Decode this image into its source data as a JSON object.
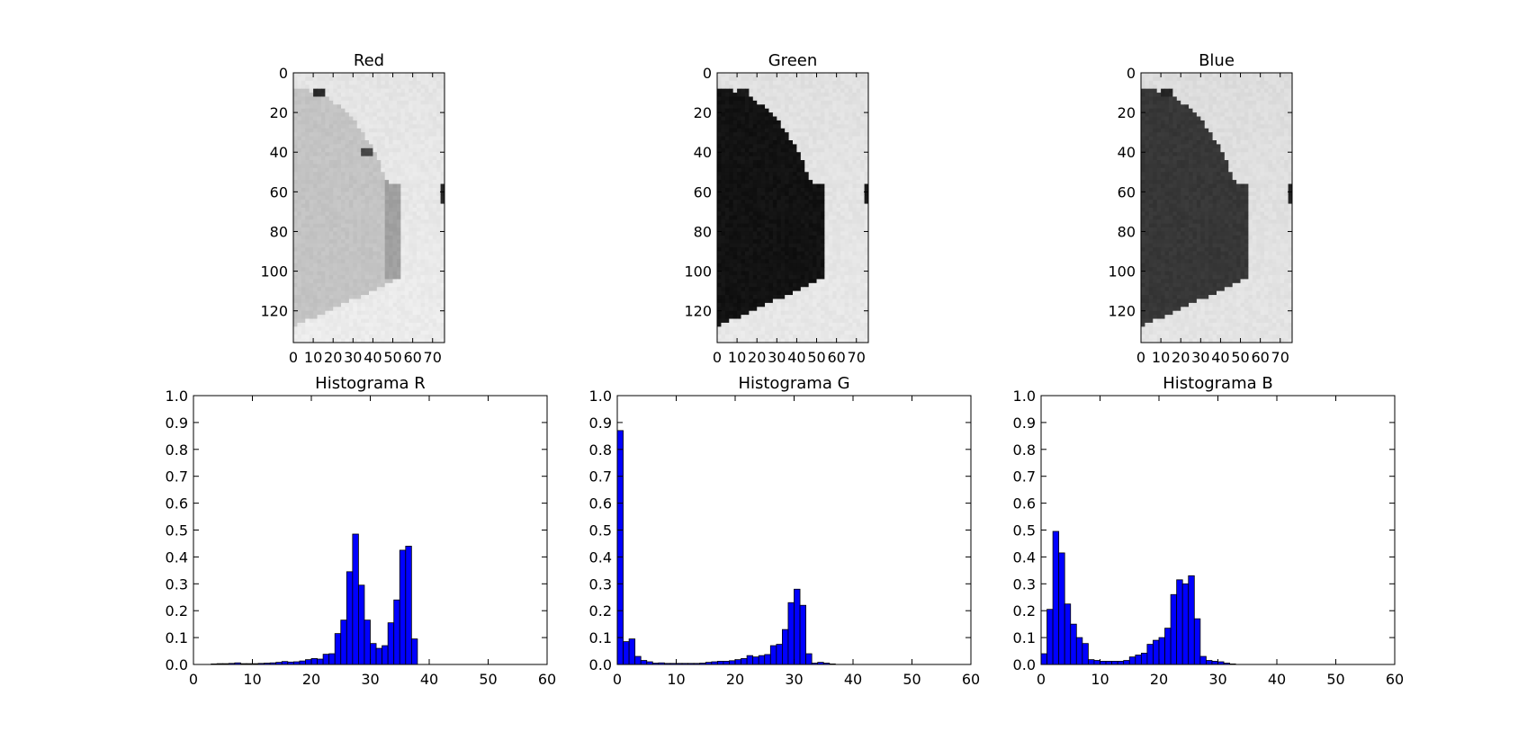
{
  "chart_data": [
    {
      "type": "image",
      "title": "Red",
      "channel": "red",
      "xlim": [
        0,
        76
      ],
      "ylim": [
        0,
        136
      ],
      "xticks": [
        0,
        10,
        20,
        30,
        40,
        50,
        60,
        70
      ],
      "yticks": [
        0,
        20,
        40,
        60,
        80,
        100,
        120
      ],
      "y_inverted": true,
      "colormap": "gray"
    },
    {
      "type": "image",
      "title": "Green",
      "channel": "green",
      "xlim": [
        0,
        76
      ],
      "ylim": [
        0,
        136
      ],
      "xticks": [
        0,
        10,
        20,
        30,
        40,
        50,
        60,
        70
      ],
      "yticks": [
        0,
        20,
        40,
        60,
        80,
        100,
        120
      ],
      "y_inverted": true,
      "colormap": "gray"
    },
    {
      "type": "image",
      "title": "Blue",
      "channel": "blue",
      "xlim": [
        0,
        76
      ],
      "ylim": [
        0,
        136
      ],
      "xticks": [
        0,
        10,
        20,
        30,
        40,
        50,
        60,
        70
      ],
      "yticks": [
        0,
        20,
        40,
        60,
        80,
        100,
        120
      ],
      "y_inverted": true,
      "colormap": "gray"
    },
    {
      "type": "bar",
      "title": "Histograma R",
      "xlim": [
        0,
        60
      ],
      "ylim": [
        0,
        1.0
      ],
      "xticks": [
        0,
        10,
        20,
        30,
        40,
        50,
        60
      ],
      "yticks": [
        0.0,
        0.1,
        0.2,
        0.3,
        0.4,
        0.5,
        0.6,
        0.7,
        0.8,
        0.9,
        1.0
      ],
      "bar_color": "#0000ff",
      "values": [
        0.0,
        0.0,
        0.0,
        0.002,
        0.003,
        0.003,
        0.004,
        0.006,
        0.003,
        0.003,
        0.003,
        0.004,
        0.005,
        0.006,
        0.008,
        0.011,
        0.009,
        0.01,
        0.013,
        0.018,
        0.022,
        0.02,
        0.038,
        0.04,
        0.115,
        0.165,
        0.345,
        0.485,
        0.295,
        0.165,
        0.078,
        0.06,
        0.07,
        0.155,
        0.24,
        0.425,
        0.44,
        0.095,
        0,
        0,
        0,
        0,
        0,
        0,
        0,
        0,
        0,
        0,
        0,
        0,
        0,
        0,
        0,
        0,
        0,
        0,
        0,
        0,
        0,
        0
      ]
    },
    {
      "type": "bar",
      "title": "Histograma G",
      "xlim": [
        0,
        60
      ],
      "ylim": [
        0,
        1.0
      ],
      "xticks": [
        0,
        10,
        20,
        30,
        40,
        50,
        60
      ],
      "yticks": [
        0.0,
        0.1,
        0.2,
        0.3,
        0.4,
        0.5,
        0.6,
        0.7,
        0.8,
        0.9,
        1.0
      ],
      "bar_color": "#0000ff",
      "values": [
        0.87,
        0.085,
        0.095,
        0.03,
        0.015,
        0.01,
        0.005,
        0.006,
        0.004,
        0.004,
        0.004,
        0.004,
        0.004,
        0.004,
        0.005,
        0.008,
        0.01,
        0.012,
        0.012,
        0.014,
        0.018,
        0.022,
        0.033,
        0.028,
        0.033,
        0.037,
        0.07,
        0.075,
        0.13,
        0.23,
        0.28,
        0.22,
        0.04,
        0.005,
        0.008,
        0.005,
        0.002,
        0,
        0,
        0,
        0,
        0,
        0,
        0,
        0,
        0,
        0,
        0,
        0,
        0,
        0,
        0,
        0,
        0,
        0,
        0,
        0,
        0,
        0,
        0
      ]
    },
    {
      "type": "bar",
      "title": "Histograma B",
      "xlim": [
        0,
        60
      ],
      "ylim": [
        0,
        1.0
      ],
      "xticks": [
        0,
        10,
        20,
        30,
        40,
        50,
        60
      ],
      "yticks": [
        0.0,
        0.1,
        0.2,
        0.3,
        0.4,
        0.5,
        0.6,
        0.7,
        0.8,
        0.9,
        1.0
      ],
      "bar_color": "#0000ff",
      "values": [
        0.04,
        0.205,
        0.495,
        0.415,
        0.225,
        0.15,
        0.1,
        0.078,
        0.018,
        0.015,
        0.012,
        0.012,
        0.012,
        0.012,
        0.015,
        0.028,
        0.035,
        0.042,
        0.075,
        0.09,
        0.1,
        0.135,
        0.26,
        0.315,
        0.3,
        0.33,
        0.17,
        0.03,
        0.015,
        0.012,
        0.01,
        0.005,
        0.002,
        0,
        0,
        0,
        0,
        0,
        0,
        0,
        0,
        0,
        0,
        0,
        0,
        0,
        0,
        0,
        0,
        0,
        0,
        0,
        0,
        0,
        0,
        0,
        0,
        0,
        0,
        0
      ]
    }
  ]
}
